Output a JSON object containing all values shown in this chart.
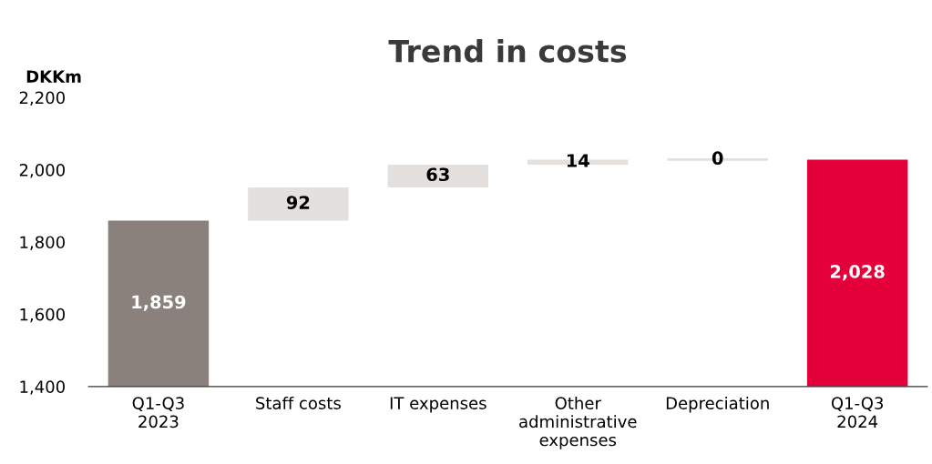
{
  "chart_data": {
    "type": "bar",
    "title": "Trend in costs",
    "ylabel": "DKKm",
    "categories": [
      "Q1-Q3\n2023",
      "Staff costs",
      "IT expenses",
      "Other\nadministrative\nexpenses",
      "Depreciation",
      "Q1-Q3\n2024"
    ],
    "values": [
      1859,
      92,
      63,
      14,
      0,
      2028
    ],
    "base": [
      0,
      1859,
      1951,
      2014,
      2028,
      0
    ],
    "colors": [
      "#8a817c",
      "#e4e0dd",
      "#e4e0dd",
      "#e4e0dd",
      "#e4e0dd",
      "#e4003a"
    ],
    "ylim": [
      1400,
      2200
    ],
    "yticks": [
      {
        "value": 1400,
        "label": "1,400"
      },
      {
        "value": 1600,
        "label": "1,600"
      },
      {
        "value": 1800,
        "label": "1,800"
      },
      {
        "value": 2000,
        "label": "2,000"
      },
      {
        "value": 2200,
        "label": "2,200"
      }
    ],
    "value_labels": [
      "1,859",
      "92",
      "63",
      "14",
      "0",
      "2,028"
    ],
    "grid": false,
    "legend": false
  }
}
